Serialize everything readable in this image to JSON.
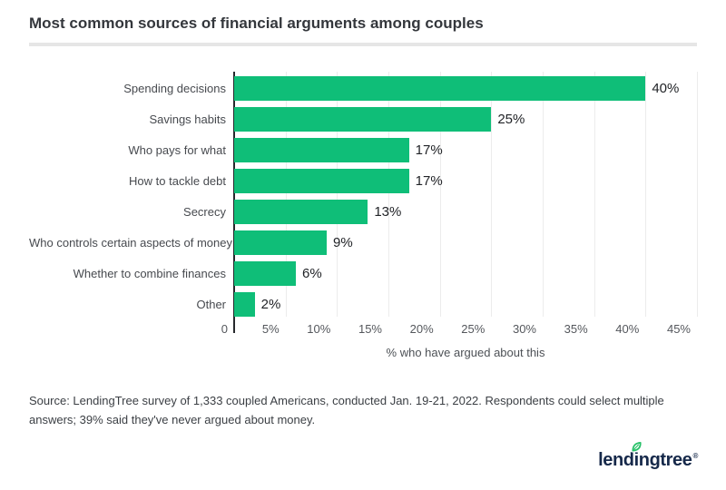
{
  "title": "Most common sources of financial arguments among couples",
  "chart_data": {
    "type": "bar",
    "orientation": "horizontal",
    "categories": [
      "Spending decisions",
      "Savings habits",
      "Who pays for what",
      "How to tackle debt",
      "Secrecy",
      "Who controls certain aspects of money",
      "Whether to combine finances",
      "Other"
    ],
    "values": [
      40,
      25,
      17,
      17,
      13,
      9,
      6,
      2
    ],
    "value_labels": [
      "40%",
      "25%",
      "17%",
      "17%",
      "13%",
      "9%",
      "6%",
      "2%"
    ],
    "xlabel": "% who have argued about this",
    "xlim": [
      0,
      45
    ],
    "xticks": [
      {
        "label": "0",
        "value": 0
      },
      {
        "label": "5%",
        "value": 5
      },
      {
        "label": "10%",
        "value": 10
      },
      {
        "label": "15%",
        "value": 15
      },
      {
        "label": "20%",
        "value": 20
      },
      {
        "label": "25%",
        "value": 25
      },
      {
        "label": "30%",
        "value": 30
      },
      {
        "label": "35%",
        "value": 35
      },
      {
        "label": "40%",
        "value": 40
      },
      {
        "label": "45%",
        "value": 45
      }
    ],
    "grid": "vertical",
    "legend": "none",
    "bar_color": "#0fbe78",
    "grid_color": "#ececec",
    "axis_color": "#26282c"
  },
  "source_note": "Source: LendingTree survey of 1,333 coupled Americans, conducted Jan. 19-21, 2022. Respondents could select multiple answers; 39% said they've never argued about money.",
  "logo": {
    "pre": "lend",
    "i": "i",
    "post": "ngtree",
    "reg": "®",
    "navy": "#16294a",
    "leaf_green": "#27c168"
  }
}
